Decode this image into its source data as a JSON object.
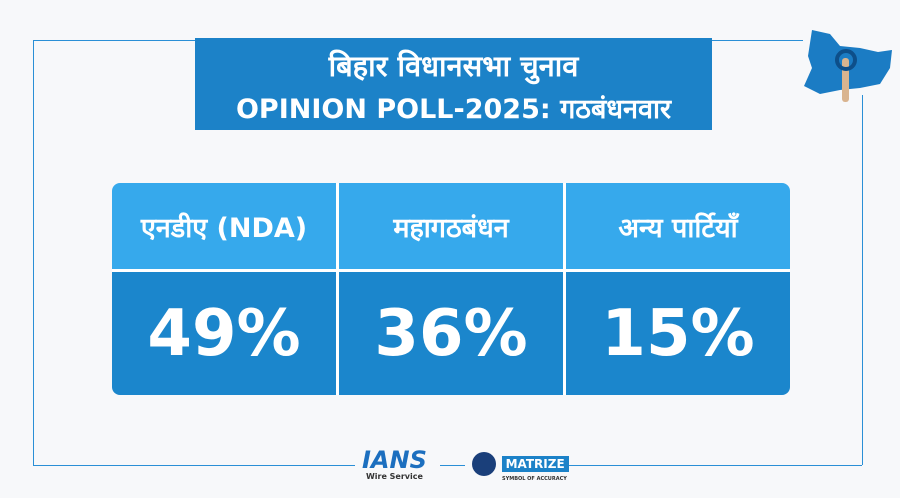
{
  "title": {
    "line1": "बिहार विधानसभा चुनाव",
    "line2": "OPINION POLL-2025: गठबंधनवार"
  },
  "alliances": [
    {
      "name": "एनडीए (NDA)",
      "share": "49%"
    },
    {
      "name": "महागठबंधन",
      "share": "36%"
    },
    {
      "name": "अन्य पार्टियाँ",
      "share": "15%"
    }
  ],
  "logos": {
    "ians": "IANS",
    "ians_sub": "Wire Service",
    "matrize": "MATRIZE",
    "matrize_sub": "SYMBOL OF ACCURACY"
  },
  "colors": {
    "primary": "#1c82c8",
    "header": "#36a9ec",
    "value": "#1b86cc"
  }
}
